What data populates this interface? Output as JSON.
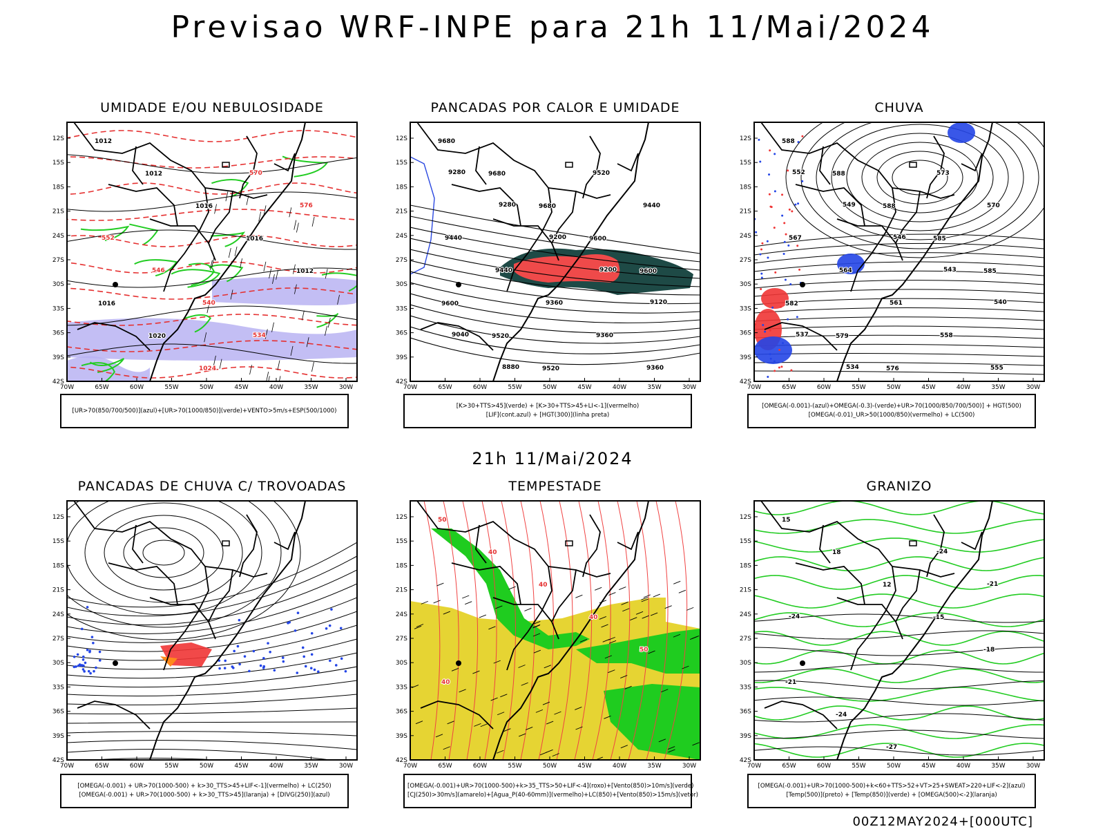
{
  "page": {
    "title": "Previsao WRF-INPE  para 21h 11/Mai/2024",
    "mid_title": "21h 11/Mai/2024",
    "footer": "00Z12MAY2024+[000UTC]"
  },
  "axes": {
    "lat_labels": [
      "12S",
      "15S",
      "18S",
      "21S",
      "24S",
      "27S",
      "30S",
      "33S",
      "36S",
      "39S",
      "42S"
    ],
    "lon_labels": [
      "70W",
      "65W",
      "60W",
      "55W",
      "50W",
      "45W",
      "40W",
      "35W",
      "30W"
    ]
  },
  "panels": [
    {
      "title": "UMIDADE E/OU NEBULOSIDADE",
      "legend": [
        "[UR>70(850/700/500)](azul)+[UR>70(1000/850)](verde)+VENTO>5m/s+ESP(500/1000)"
      ],
      "labels": [
        "1012",
        "1012",
        "1016",
        "1016",
        "1012",
        "1016",
        "1020",
        "1024",
        "570",
        "576",
        "552",
        "546",
        "540",
        "534"
      ]
    },
    {
      "title": "PANCADAS POR CALOR E UMIDADE",
      "legend": [
        "[K>30+TTS>45](verde) + [K>30+TTS>45+LI<-1](vermelho)",
        "[LIF](cont.azul) + [HGT(300)](linha preta)"
      ],
      "labels": [
        "9680",
        "9680",
        "9680",
        "9600",
        "9600",
        "9600",
        "9520",
        "9520",
        "9520",
        "9440",
        "9440",
        "9440",
        "9360",
        "9360",
        "9360",
        "9280",
        "9280",
        "9200",
        "9200",
        "9120",
        "9040",
        "8880"
      ]
    },
    {
      "title": "CHUVA",
      "legend": [
        "[OMEGA(-0.001)-(azul)+OMEGA(-0.3)-(verde)+UR>70(1000/850/700/500)] + HGT(500)",
        "[OMEGA(-0.01)_UR>50(1000/850)(vermelho) + LC(500)"
      ],
      "labels": [
        "588",
        "588",
        "588",
        "585",
        "585",
        "582",
        "579",
        "576",
        "573",
        "570",
        "567",
        "564",
        "561",
        "558",
        "555",
        "552",
        "549",
        "546",
        "543",
        "540",
        "537",
        "534"
      ]
    },
    {
      "title": "PANCADAS DE CHUVA C/ TROVOADAS",
      "legend": [
        "[OMEGA(-0.001) + UR>70(1000-500) + k>30_TTS>45+LIF<-1](vermelho) + LC(250)",
        "[OMEGA(-0.001) + UR>70(1000-500) + k>30_TTS>45](laranja) + [DIVG(250)](azul)"
      ],
      "labels": []
    },
    {
      "title": "TEMPESTADE",
      "legend": [
        "[OMEGA(-0.001)+UR>70(1000-500)+k>35_TTS>50+LIF<-4](roxo)+[Vento(850)>10m/s](verde)",
        "[CJ(250)>30m/s](amarelo)+[Agua_P(40-60mm)](vermelho)+LC(850)+[Vento(850)>15m/s](vetor)"
      ],
      "labels": [
        "50",
        "40",
        "40",
        "40",
        "50",
        "40"
      ]
    },
    {
      "title": "GRANIZO",
      "legend": [
        "[OMEGA(-0.001)+UR>70(1000-500)+k<60+TTS>52+VT>25+SWEAT>220+LIF<-2](azul)",
        "[Temp(500)](preto) + [Temp(850)](verde) + [OMEGA(500)<-2](laranja)"
      ],
      "labels": [
        "15",
        "18",
        "12",
        "-15",
        "-18",
        "-21",
        "-24",
        "-27",
        "-24",
        "-21",
        "-24"
      ]
    }
  ]
}
